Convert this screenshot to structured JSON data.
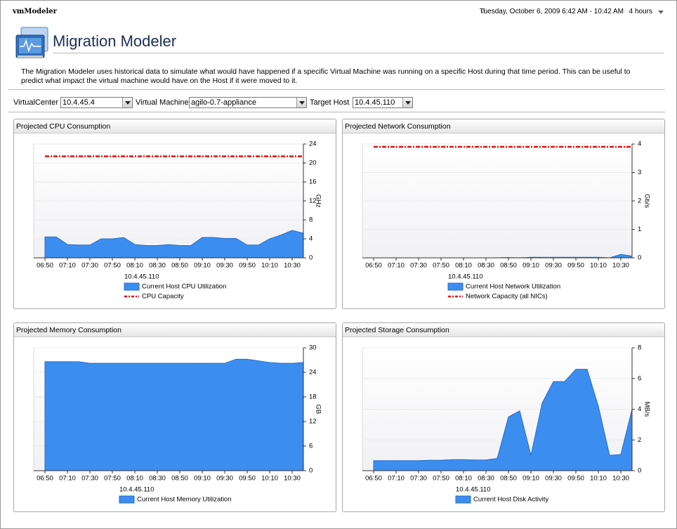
{
  "header": {
    "app": "vmModeler",
    "time_range": "Tuesday, October 6, 2009 6:42 AM - 10:42 AM",
    "duration": "4 hours"
  },
  "page": {
    "title": "Migration Modeler",
    "description": "The Migration Modeler uses historical data to simulate what would have happened if a specific Virtual Machine was running on a specific Host during that time period. This can be useful to predict what impact the virtual machine would have on the Host if it were moved to it."
  },
  "controls": [
    {
      "label": "VirtualCenter",
      "value": "10.4.45.4"
    },
    {
      "label": "Virtual Machine",
      "value": "agilo-0.7-appliance"
    },
    {
      "label": "Target Host",
      "value": "10.4.45.110"
    }
  ],
  "chart_data": [
    {
      "type": "area",
      "title": "Projected CPU Consumption",
      "subtitle": "10.4.45.110",
      "ylabel": "GHz",
      "grid": true,
      "categories": [
        "06:50",
        null,
        "07:10",
        null,
        "07:30",
        null,
        "07:50",
        null,
        "08:10",
        null,
        "08:30",
        null,
        "08:50",
        null,
        "09:10",
        null,
        "09:30",
        null,
        "09:50",
        null,
        "10:10",
        null,
        "10:30",
        null
      ],
      "ylim": [
        0,
        24
      ],
      "yticks": [
        0,
        4,
        8,
        12,
        16,
        20,
        24
      ],
      "series": [
        {
          "name": "Current Host CPU Utilization",
          "type": "area",
          "color": "#3b8ef0",
          "values": [
            4.4,
            4.4,
            2.8,
            2.7,
            2.7,
            4.0,
            4.0,
            4.3,
            2.8,
            2.6,
            2.6,
            2.8,
            2.6,
            2.6,
            4.3,
            4.3,
            4.1,
            4.1,
            2.7,
            2.7,
            4.0,
            4.8,
            5.8,
            5.2
          ]
        },
        {
          "name": "CPU Capacity",
          "type": "line",
          "color": "#e01010",
          "values": [
            21.4,
            21.4,
            21.4,
            21.4,
            21.4,
            21.4,
            21.4,
            21.4,
            21.4,
            21.4,
            21.4,
            21.4,
            21.4,
            21.4,
            21.4,
            21.4,
            21.4,
            21.4,
            21.4,
            21.4,
            21.4,
            21.4,
            21.4,
            21.4
          ]
        }
      ]
    },
    {
      "type": "area",
      "title": "Projected Network Consumption",
      "subtitle": "10.4.45.110",
      "ylabel": "Gb/s",
      "grid": true,
      "categories": [
        "06:50",
        null,
        "07:10",
        null,
        "07:30",
        null,
        "07:50",
        null,
        "08:10",
        null,
        "08:30",
        null,
        "08:50",
        null,
        "09:10",
        null,
        "09:30",
        null,
        "09:50",
        null,
        "10:10",
        null,
        "10:30",
        null
      ],
      "ylim": [
        0,
        4
      ],
      "yticks": [
        0,
        1,
        2,
        3,
        4
      ],
      "series": [
        {
          "name": "Current Host Network Utilization",
          "type": "area",
          "color": "#3b8ef0",
          "values": [
            0,
            0,
            0,
            0,
            0,
            0,
            0,
            0,
            0,
            0,
            0,
            0,
            0.01,
            0,
            0.02,
            0.02,
            0.02,
            0.02,
            0.02,
            0.02,
            0.02,
            0,
            0.12,
            0.06
          ]
        },
        {
          "name": "Network Capacity (all NICs)",
          "type": "line",
          "color": "#e01010",
          "values": [
            3.9,
            3.9,
            3.9,
            3.9,
            3.9,
            3.9,
            3.9,
            3.9,
            3.9,
            3.9,
            3.9,
            3.9,
            3.9,
            3.9,
            3.9,
            3.9,
            3.9,
            3.9,
            3.9,
            3.9,
            3.9,
            3.9,
            3.9,
            3.9
          ]
        }
      ]
    },
    {
      "type": "area",
      "title": "Projected Memory Consumption",
      "subtitle": "10.4.45.110",
      "ylabel": "GB",
      "grid": true,
      "categories": [
        "06:50",
        null,
        "07:10",
        null,
        "07:30",
        null,
        "07:50",
        null,
        "08:10",
        null,
        "08:30",
        null,
        "08:50",
        null,
        "09:10",
        null,
        "09:30",
        null,
        "09:50",
        null,
        "10:10",
        null,
        "10:30",
        null
      ],
      "ylim": [
        0,
        30
      ],
      "yticks": [
        0,
        6,
        12,
        18,
        24,
        30
      ],
      "series": [
        {
          "name": "Current Host Memory Utilization",
          "type": "area",
          "color": "#3b8ef0",
          "values": [
            26.6,
            26.6,
            26.6,
            26.6,
            26.2,
            26.2,
            26.2,
            26.2,
            26.2,
            26.2,
            26.2,
            26.2,
            26.2,
            26.2,
            26.2,
            26.2,
            26.2,
            27.2,
            27.2,
            26.8,
            26.4,
            26.2,
            26.2,
            26.4
          ]
        }
      ]
    },
    {
      "type": "area",
      "title": "Projected Storage Consumption",
      "subtitle": "10.4.45.110",
      "ylabel": "MB/s",
      "grid": true,
      "categories": [
        "06:50",
        null,
        "07:10",
        null,
        "07:30",
        null,
        "07:50",
        null,
        "08:10",
        null,
        "08:30",
        null,
        "08:50",
        null,
        "09:10",
        null,
        "09:30",
        null,
        "09:50",
        null,
        "10:10",
        null,
        "10:30",
        null
      ],
      "ylim": [
        0,
        8
      ],
      "yticks": [
        0,
        2,
        4,
        6,
        8
      ],
      "series": [
        {
          "name": "Current Host Disk Activity",
          "type": "area",
          "color": "#3b8ef0",
          "values": [
            0.65,
            0.65,
            0.65,
            0.65,
            0.65,
            0.68,
            0.68,
            0.72,
            0.72,
            0.7,
            0.7,
            0.8,
            3.5,
            3.9,
            1.0,
            4.4,
            5.8,
            5.8,
            6.6,
            6.6,
            4.2,
            1.0,
            1.05,
            4.0
          ]
        }
      ]
    }
  ]
}
